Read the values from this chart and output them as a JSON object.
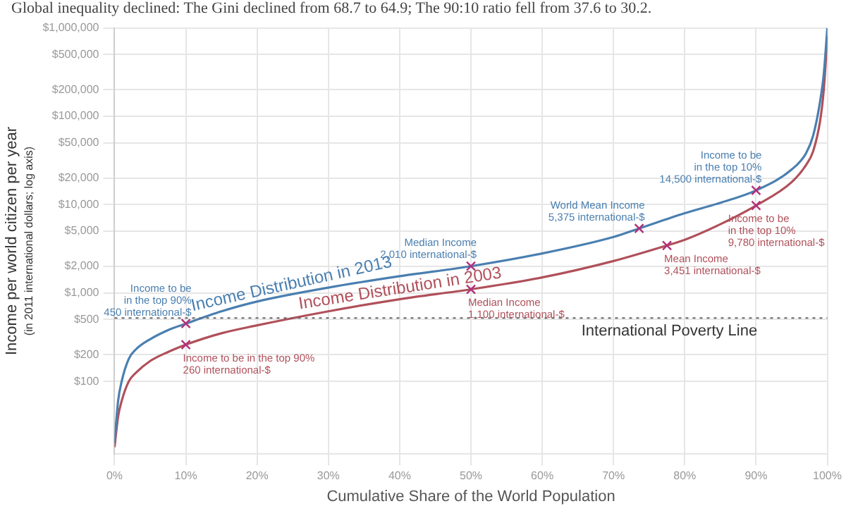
{
  "chart_data": {
    "type": "line",
    "title": "Global inequality declined: The Gini declined from 68.7 to 64.9; The 90:10 ratio fell from 37.6 to 30.2.",
    "xlabel": "Cumulative Share of the World Population",
    "ylabel": "Income per world citizen per year",
    "log": "y",
    "grid": true,
    "legend": false,
    "marker": "none",
    "line_style": "solid",
    "xlim": [
      0,
      100
    ],
    "xticks": [
      {
        "value": 0,
        "label": "0%"
      },
      {
        "value": 10,
        "label": "10%"
      },
      {
        "value": 20,
        "label": "20%"
      },
      {
        "value": 30,
        "label": "30%"
      },
      {
        "value": 40,
        "label": "40%"
      },
      {
        "value": 50,
        "label": "50%"
      },
      {
        "value": 60,
        "label": "60%"
      },
      {
        "value": 70,
        "label": "70%"
      },
      {
        "value": 80,
        "label": "80%"
      },
      {
        "value": 90,
        "label": "90%"
      },
      {
        "value": 100,
        "label": "100%"
      }
    ],
    "ylim": [
      15,
      1000000
    ],
    "yticks": [
      {
        "value": 100,
        "label": "$100"
      },
      {
        "value": 200,
        "label": "$200"
      },
      {
        "value": 500,
        "label": "$500"
      },
      {
        "value": 1000,
        "label": "$1,000"
      },
      {
        "value": 2000,
        "label": "$2,000"
      },
      {
        "value": 5000,
        "label": "$5,000"
      },
      {
        "value": 10000,
        "label": "$10,000"
      },
      {
        "value": 20000,
        "label": "$20,000"
      },
      {
        "value": 50000,
        "label": "$50,000"
      },
      {
        "value": 100000,
        "label": "$100,000"
      },
      {
        "value": 200000,
        "label": "$200,000"
      },
      {
        "value": 500000,
        "label": "$500,000"
      },
      {
        "value": 1000000,
        "label": "$1,000,000"
      }
    ],
    "series": [
      {
        "name": "Income Distribution in 2013",
        "color": "#4a7fb0",
        "x": [
          0,
          0.5,
          1,
          2,
          3,
          5,
          7.5,
          10,
          15,
          20,
          30,
          40,
          50,
          60,
          70,
          73.6,
          80,
          85,
          90,
          95,
          97,
          98,
          99,
          99.5,
          100
        ],
        "values": [
          20,
          60,
          100,
          180,
          230,
          300,
          380,
          450,
          620,
          800,
          1150,
          1550,
          2010,
          2800,
          4300,
          5375,
          8000,
          10500,
          14500,
          25000,
          38000,
          60000,
          150000,
          300000,
          1000000
        ]
      },
      {
        "name": "Income Distribution in 2003",
        "color": "#b0505a",
        "x": [
          0,
          0.5,
          1,
          2,
          3,
          5,
          7.5,
          10,
          15,
          20,
          30,
          40,
          50,
          60,
          70,
          77.5,
          80,
          85,
          90,
          95,
          97,
          98,
          99,
          99.5,
          100
        ],
        "values": [
          18,
          40,
          60,
          100,
          125,
          170,
          215,
          260,
          350,
          430,
          620,
          850,
          1100,
          1500,
          2300,
          3451,
          4000,
          6000,
          9780,
          18000,
          28000,
          40000,
          90000,
          200000,
          800000
        ]
      }
    ],
    "ref_lines": [
      {
        "axis": "y",
        "value": 520,
        "label": "International Poverty Line",
        "color": "#666666",
        "line_style": "dotted"
      }
    ],
    "annotations": [
      "(in 2011 international dollars; log axis)",
      {
        "text": "Income to be\nin the top 90%\n450 international-$",
        "x": 10,
        "y": 450
      },
      {
        "text": "Income to be in the top 90%\n260 international-$",
        "x": 10,
        "y": 260
      },
      {
        "text": "Median Income\n2,010 international-$",
        "x": 50,
        "y": 2010
      },
      {
        "text": "Median Income\n1,100 international-$",
        "x": 50,
        "y": 1100
      },
      {
        "text": "World Mean Income\n5,375 international-$",
        "x": 73.6,
        "y": 5375
      },
      {
        "text": "Mean Income\n3,451 international-$",
        "x": 77.5,
        "y": 3451
      },
      {
        "text": "Income to be\nin the top 10%\n14,500 international-$",
        "x": 90,
        "y": 14500
      },
      {
        "text": "Income to be\nin the top 10%\n9,780 international-$",
        "x": 90,
        "y": 9780
      }
    ]
  }
}
